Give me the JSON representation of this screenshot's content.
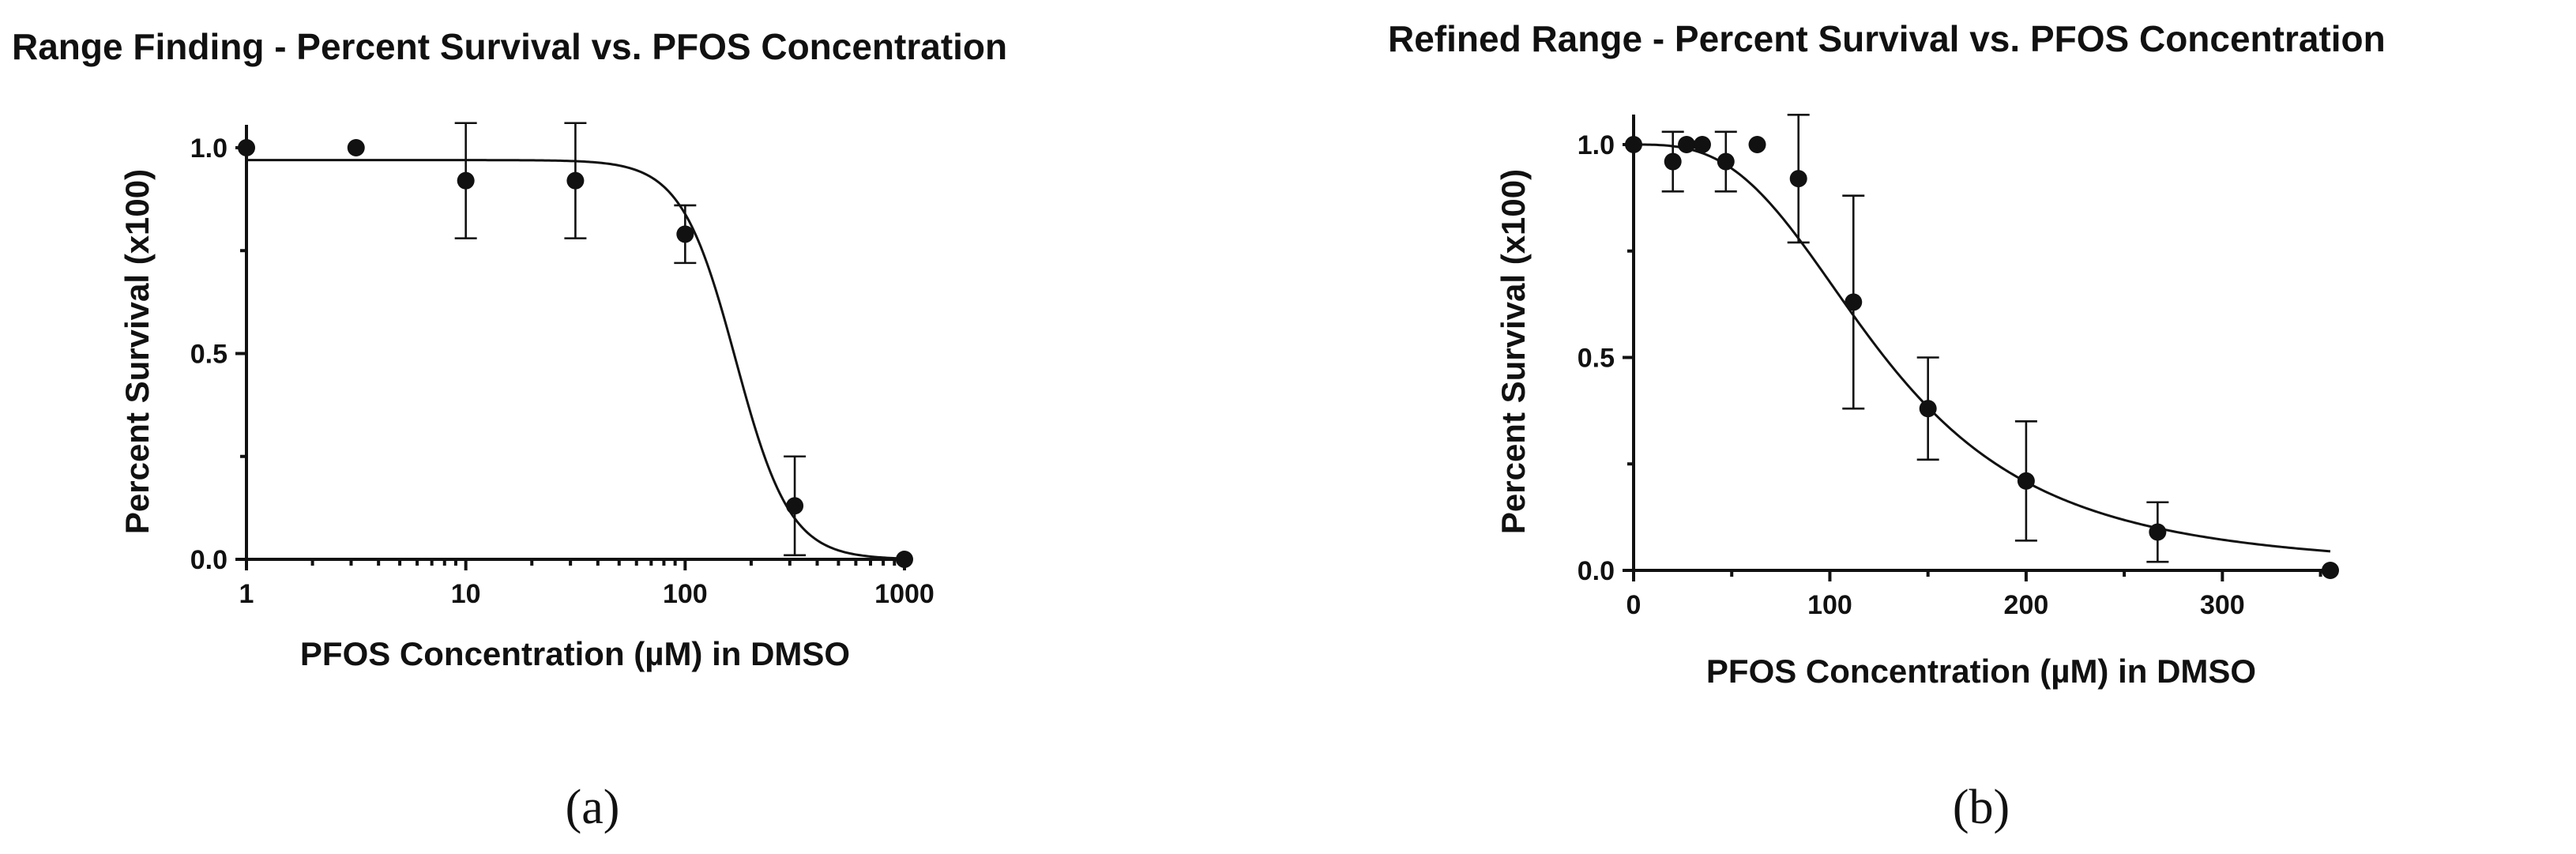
{
  "chart_data": [
    {
      "type": "scatter",
      "panel_label": "(a)",
      "title": "Range Finding - Percent Survival vs. PFOS Concentration",
      "xlabel": "PFOS Concentration (µM) in DMSO",
      "ylabel": "Percent Survival (x100)",
      "xscale": "log",
      "xlim": [
        1,
        1000
      ],
      "ylim": [
        0,
        1.0
      ],
      "xticks": [
        "1",
        "10",
        "100",
        "1000"
      ],
      "yticks": [
        "0.0",
        "0.5",
        "1.0"
      ],
      "points": [
        {
          "x": 1,
          "y": 1.0,
          "err": 0
        },
        {
          "x": 3.16,
          "y": 1.0,
          "err": 0
        },
        {
          "x": 10,
          "y": 0.92,
          "err": 0.14
        },
        {
          "x": 31.6,
          "y": 0.92,
          "err": 0.14
        },
        {
          "x": 100,
          "y": 0.79,
          "err": 0.07
        },
        {
          "x": 316,
          "y": 0.13,
          "err": 0.12
        },
        {
          "x": 1000,
          "y": 0.0,
          "err": 0
        }
      ],
      "fit": {
        "top": 0.97,
        "bottom": 0.0,
        "ec50": 170,
        "hill": 3.5
      }
    },
    {
      "type": "scatter",
      "panel_label": "(b)",
      "title": "Refined Range - Percent Survival vs. PFOS Concentration",
      "xlabel": "PFOS Concentration (µM) in DMSO",
      "ylabel": "Percent Survival (x100)",
      "xscale": "linear",
      "xlim": [
        0,
        355
      ],
      "ylim": [
        0,
        1.0
      ],
      "xticks": [
        "0",
        "100",
        "200",
        "300"
      ],
      "yticks": [
        "0.0",
        "0.5",
        "1.0"
      ],
      "points": [
        {
          "x": 0,
          "y": 1.0,
          "err": 0
        },
        {
          "x": 20,
          "y": 0.96,
          "err": 0.07
        },
        {
          "x": 27,
          "y": 1.0,
          "err": 0
        },
        {
          "x": 35,
          "y": 1.0,
          "err": 0
        },
        {
          "x": 47,
          "y": 0.96,
          "err": 0.07
        },
        {
          "x": 63,
          "y": 1.0,
          "err": 0
        },
        {
          "x": 84,
          "y": 0.92,
          "err": 0.15
        },
        {
          "x": 112,
          "y": 0.63,
          "err": 0.25
        },
        {
          "x": 150,
          "y": 0.38,
          "err": 0.12
        },
        {
          "x": 200,
          "y": 0.21,
          "err": 0.14
        },
        {
          "x": 267,
          "y": 0.09,
          "err": 0.07
        },
        {
          "x": 355,
          "y": 0.0,
          "err": 0
        }
      ],
      "fit": {
        "top": 1.0,
        "bottom": 0.0,
        "ec50": 128,
        "hill": 3.0
      }
    }
  ]
}
